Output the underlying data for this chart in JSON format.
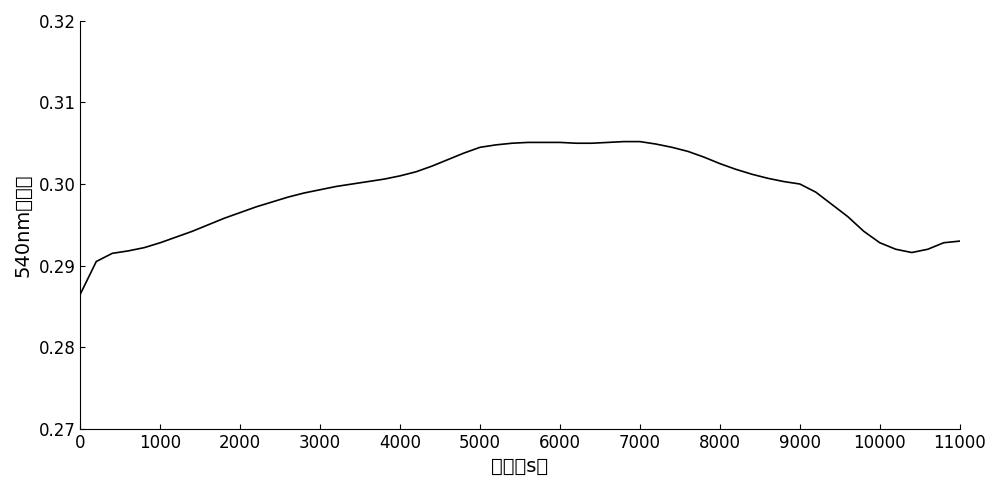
{
  "x": [
    0,
    200,
    400,
    600,
    800,
    1000,
    1200,
    1400,
    1600,
    1800,
    2000,
    2200,
    2400,
    2600,
    2800,
    3000,
    3200,
    3400,
    3600,
    3800,
    4000,
    4200,
    4400,
    4600,
    4800,
    5000,
    5200,
    5400,
    5600,
    5800,
    6000,
    6200,
    6400,
    6600,
    6800,
    7000,
    7200,
    7400,
    7600,
    7800,
    8000,
    8200,
    8400,
    8600,
    8800,
    9000,
    9200,
    9400,
    9600,
    9800,
    10000,
    10200,
    10400,
    10600,
    10800,
    11000
  ],
  "y": [
    0.2865,
    0.2905,
    0.2915,
    0.2918,
    0.2922,
    0.2928,
    0.2935,
    0.2942,
    0.295,
    0.2958,
    0.2965,
    0.2972,
    0.2978,
    0.2984,
    0.2989,
    0.2993,
    0.2997,
    0.3,
    0.3003,
    0.3006,
    0.301,
    0.3015,
    0.3022,
    0.303,
    0.3038,
    0.3045,
    0.3048,
    0.305,
    0.3051,
    0.3051,
    0.3051,
    0.305,
    0.305,
    0.3051,
    0.3052,
    0.3052,
    0.3049,
    0.3045,
    0.304,
    0.3033,
    0.3025,
    0.3018,
    0.3012,
    0.3007,
    0.3003,
    0.3,
    0.299,
    0.2975,
    0.296,
    0.2942,
    0.2928,
    0.292,
    0.2916,
    0.292,
    0.2928,
    0.293
  ],
  "xlim": [
    0,
    11000
  ],
  "ylim": [
    0.27,
    0.32
  ],
  "xticks": [
    0,
    1000,
    2000,
    3000,
    4000,
    5000,
    6000,
    7000,
    8000,
    9000,
    10000,
    11000
  ],
  "yticks": [
    0.27,
    0.28,
    0.29,
    0.3,
    0.31,
    0.32
  ],
  "xlabel": "时间（s）",
  "ylabel": "540nm吸光度",
  "line_color": "#000000",
  "line_width": 1.2,
  "bg_color": "#ffffff",
  "tick_fontsize": 12,
  "label_fontsize": 14
}
